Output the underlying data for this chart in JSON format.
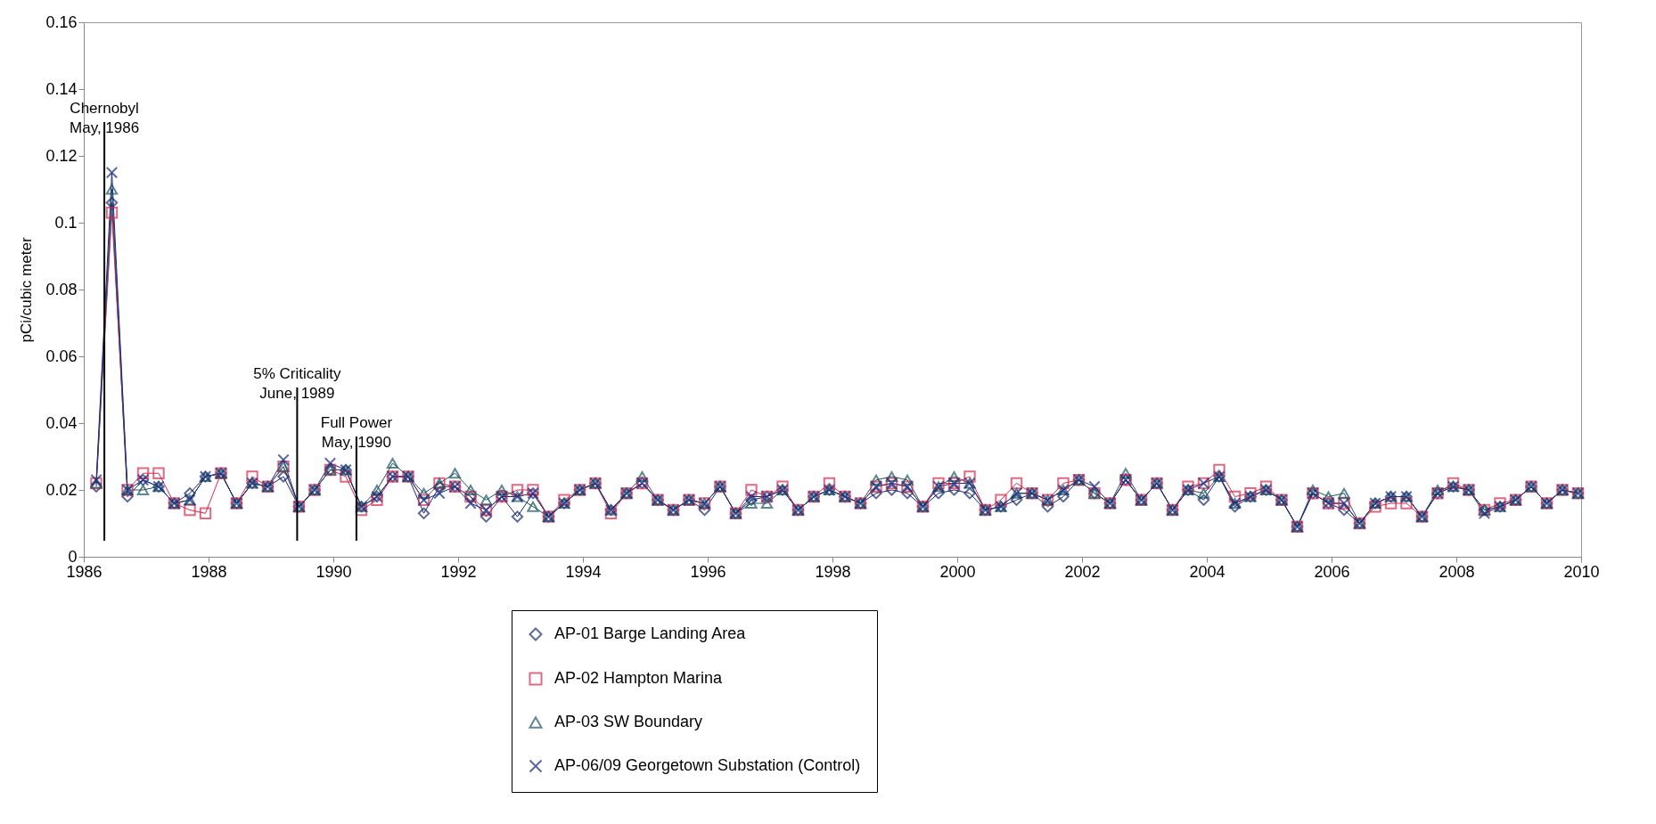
{
  "chart_data": {
    "type": "line",
    "ylabel": "pCi/cubic meter",
    "x": [
      1986.2,
      1986.45,
      1986.7,
      1986.95,
      1987.2,
      1987.45,
      1987.7,
      1987.95,
      1988.2,
      1988.45,
      1988.7,
      1988.95,
      1989.2,
      1989.45,
      1989.7,
      1989.95,
      1990.2,
      1990.45,
      1990.7,
      1990.95,
      1991.2,
      1991.45,
      1991.7,
      1991.95,
      1992.2,
      1992.45,
      1992.7,
      1992.95,
      1993.2,
      1993.45,
      1993.7,
      1993.95,
      1994.2,
      1994.45,
      1994.7,
      1994.95,
      1995.2,
      1995.45,
      1995.7,
      1995.95,
      1996.2,
      1996.45,
      1996.7,
      1996.95,
      1997.2,
      1997.45,
      1997.7,
      1997.95,
      1998.2,
      1998.45,
      1998.7,
      1998.95,
      1999.2,
      1999.45,
      1999.7,
      1999.95,
      2000.2,
      2000.45,
      2000.7,
      2000.95,
      2001.2,
      2001.45,
      2001.7,
      2001.95,
      2002.2,
      2002.45,
      2002.7,
      2002.95,
      2003.2,
      2003.45,
      2003.7,
      2003.95,
      2004.2,
      2004.45,
      2004.7,
      2004.95,
      2005.2,
      2005.45,
      2005.7,
      2005.95,
      2006.2,
      2006.45,
      2006.7,
      2006.95,
      2007.2,
      2007.45,
      2007.7,
      2007.95,
      2008.2,
      2008.45,
      2008.7,
      2008.95,
      2009.2,
      2009.45,
      2009.7,
      2009.95
    ],
    "series": [
      {
        "name": "AP-01 Barge Landing Area",
        "color": "#1b2a6b",
        "marker": "diamond",
        "values": [
          0.021,
          0.106,
          0.018,
          0.023,
          0.021,
          0.016,
          0.019,
          0.024,
          0.025,
          0.016,
          0.022,
          0.021,
          0.024,
          0.015,
          0.02,
          0.026,
          0.026,
          0.015,
          0.018,
          0.024,
          0.024,
          0.013,
          0.021,
          0.021,
          0.018,
          0.012,
          0.018,
          0.012,
          0.019,
          0.012,
          0.016,
          0.02,
          0.022,
          0.014,
          0.019,
          0.022,
          0.017,
          0.014,
          0.017,
          0.014,
          0.021,
          0.013,
          0.017,
          0.018,
          0.02,
          0.014,
          0.018,
          0.02,
          0.018,
          0.016,
          0.019,
          0.02,
          0.019,
          0.015,
          0.019,
          0.02,
          0.019,
          0.014,
          0.015,
          0.017,
          0.019,
          0.015,
          0.018,
          0.023,
          0.019,
          0.016,
          0.023,
          0.017,
          0.022,
          0.014,
          0.02,
          0.017,
          0.024,
          0.015,
          0.018,
          0.02,
          0.017,
          0.009,
          0.019,
          0.016,
          0.014,
          0.01,
          0.016,
          0.018,
          0.018,
          0.012,
          0.019,
          0.021,
          0.02,
          0.014,
          0.015,
          0.017,
          0.021,
          0.016,
          0.02,
          0.019
        ]
      },
      {
        "name": "AP-02 Hampton Marina",
        "color": "#d42a4f",
        "marker": "square",
        "values": [
          0.022,
          0.103,
          0.02,
          0.025,
          0.025,
          0.016,
          0.014,
          0.013,
          0.025,
          0.016,
          0.024,
          0.021,
          0.027,
          0.015,
          0.02,
          0.026,
          0.024,
          0.014,
          0.017,
          0.024,
          0.024,
          0.017,
          0.022,
          0.021,
          0.018,
          0.014,
          0.018,
          0.02,
          0.02,
          0.012,
          0.017,
          0.02,
          0.022,
          0.013,
          0.019,
          0.022,
          0.017,
          0.014,
          0.017,
          0.016,
          0.021,
          0.013,
          0.02,
          0.018,
          0.021,
          0.014,
          0.018,
          0.022,
          0.018,
          0.016,
          0.021,
          0.022,
          0.021,
          0.015,
          0.022,
          0.022,
          0.024,
          0.014,
          0.017,
          0.022,
          0.019,
          0.017,
          0.022,
          0.023,
          0.019,
          0.016,
          0.023,
          0.017,
          0.022,
          0.014,
          0.021,
          0.022,
          0.026,
          0.018,
          0.019,
          0.021,
          0.017,
          0.009,
          0.019,
          0.016,
          0.016,
          0.01,
          0.015,
          0.016,
          0.016,
          0.012,
          0.019,
          0.022,
          0.02,
          0.014,
          0.016,
          0.017,
          0.021,
          0.016,
          0.02,
          0.019
        ]
      },
      {
        "name": "AP-03 SW Boundary",
        "color": "#1d5560",
        "marker": "triangle",
        "values": [
          0.022,
          0.11,
          0.02,
          0.02,
          0.021,
          0.016,
          0.017,
          0.024,
          0.025,
          0.016,
          0.022,
          0.021,
          0.027,
          0.015,
          0.02,
          0.026,
          0.026,
          0.015,
          0.02,
          0.028,
          0.024,
          0.019,
          0.022,
          0.025,
          0.02,
          0.017,
          0.02,
          0.018,
          0.015,
          0.012,
          0.016,
          0.02,
          0.022,
          0.014,
          0.019,
          0.024,
          0.017,
          0.014,
          0.017,
          0.016,
          0.021,
          0.013,
          0.016,
          0.016,
          0.02,
          0.014,
          0.018,
          0.02,
          0.018,
          0.016,
          0.023,
          0.024,
          0.023,
          0.015,
          0.021,
          0.024,
          0.022,
          0.014,
          0.015,
          0.019,
          0.019,
          0.017,
          0.02,
          0.023,
          0.019,
          0.016,
          0.025,
          0.017,
          0.022,
          0.014,
          0.02,
          0.019,
          0.024,
          0.016,
          0.018,
          0.02,
          0.017,
          0.009,
          0.02,
          0.018,
          0.019,
          0.01,
          0.016,
          0.018,
          0.018,
          0.012,
          0.02,
          0.021,
          0.02,
          0.014,
          0.015,
          0.017,
          0.021,
          0.016,
          0.02,
          0.019
        ]
      },
      {
        "name": "AP-06/09 Georgetown Substation (Control)",
        "color": "#1a2a80",
        "marker": "cross",
        "values": [
          0.023,
          0.115,
          0.02,
          0.023,
          0.021,
          0.016,
          0.017,
          0.024,
          0.025,
          0.016,
          0.022,
          0.021,
          0.029,
          0.015,
          0.02,
          0.028,
          0.026,
          0.015,
          0.018,
          0.024,
          0.024,
          0.017,
          0.019,
          0.021,
          0.016,
          0.014,
          0.018,
          0.018,
          0.019,
          0.012,
          0.016,
          0.02,
          0.022,
          0.014,
          0.019,
          0.022,
          0.017,
          0.014,
          0.017,
          0.016,
          0.021,
          0.013,
          0.018,
          0.018,
          0.02,
          0.014,
          0.018,
          0.02,
          0.018,
          0.016,
          0.021,
          0.022,
          0.021,
          0.015,
          0.021,
          0.022,
          0.022,
          0.014,
          0.015,
          0.019,
          0.019,
          0.017,
          0.02,
          0.023,
          0.021,
          0.016,
          0.023,
          0.017,
          0.022,
          0.014,
          0.02,
          0.022,
          0.024,
          0.016,
          0.018,
          0.02,
          0.017,
          0.009,
          0.019,
          0.016,
          0.016,
          0.01,
          0.016,
          0.018,
          0.018,
          0.012,
          0.019,
          0.021,
          0.02,
          0.013,
          0.015,
          0.017,
          0.021,
          0.016,
          0.02,
          0.019
        ]
      }
    ],
    "xlim": [
      1986,
      2010
    ],
    "xticks": [
      1986,
      1988,
      1990,
      1992,
      1994,
      1996,
      1998,
      2000,
      2002,
      2004,
      2006,
      2008,
      2010
    ],
    "ylim": [
      0,
      0.16
    ],
    "yticks": [
      0,
      0.02,
      0.04,
      0.06,
      0.08,
      0.1,
      0.12,
      0.14,
      0.16
    ],
    "ref_lines": [
      {
        "axis": "x",
        "value": 1986.33,
        "label": "Chernobyl\nMay, 1986",
        "color": "#000000"
      },
      {
        "axis": "x",
        "value": 1989.42,
        "label": "5% Criticality\nJune, 1989",
        "color": "#000000"
      },
      {
        "axis": "x",
        "value": 1990.37,
        "label": "Full Power\nMay, 1990",
        "color": "#000000"
      }
    ],
    "grid": false,
    "legend": "bottom",
    "line_style": "solid"
  }
}
